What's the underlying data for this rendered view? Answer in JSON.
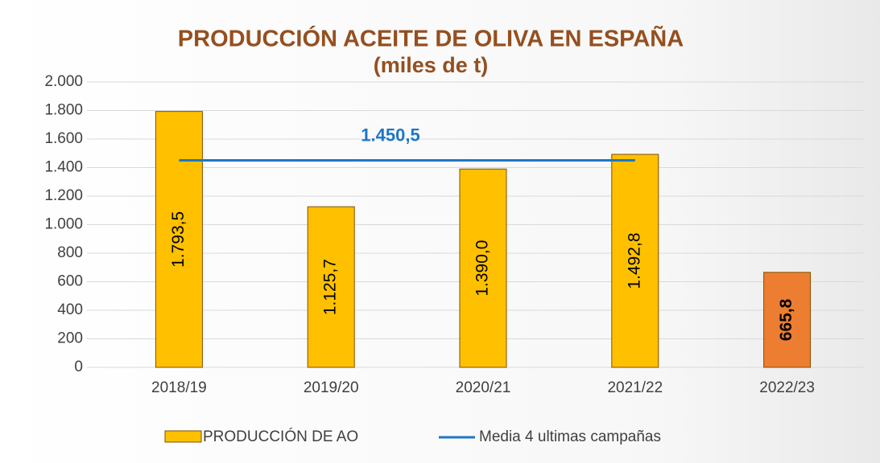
{
  "chart_data": {
    "type": "bar",
    "title": "PRODUCCIÓN ACEITE DE OLIVA EN ESPAÑA",
    "subtitle": "(miles de t)",
    "categories": [
      "2018/19",
      "2019/20",
      "2020/21",
      "2021/22",
      "2022/23"
    ],
    "series": [
      {
        "name": "PRODUCCIÓN DE AO",
        "type": "bar",
        "colors": [
          "#ffc000",
          "#ffc000",
          "#ffc000",
          "#ffc000",
          "#ed7d31"
        ],
        "values": [
          1793.5,
          1125.7,
          1390.0,
          1492.8,
          665.8
        ],
        "value_labels": [
          "1.793,5",
          "1.125,7",
          "1.390,0",
          "1.492,8",
          "665,8"
        ]
      },
      {
        "name": "Media 4 ultimas campañas",
        "type": "line",
        "color": "#1f77c4",
        "values": [
          1450.5,
          1450.5,
          1450.5,
          1450.5,
          null
        ]
      }
    ],
    "annotations": [
      {
        "text": "1.450,5",
        "value": 1450.5
      }
    ],
    "ylim": [
      0,
      2000
    ],
    "yticks": [
      0,
      200,
      400,
      600,
      800,
      {
        "value": 1000,
        "label": "1.000"
      },
      {
        "value": 1200,
        "label": "1.200"
      },
      {
        "value": 1400,
        "label": "1.400"
      },
      {
        "value": 1600,
        "label": "1.600"
      },
      {
        "value": 1800,
        "label": "1.800"
      },
      {
        "value": 2000,
        "label": "2.000"
      }
    ],
    "grid": true,
    "legend": "bottom"
  }
}
